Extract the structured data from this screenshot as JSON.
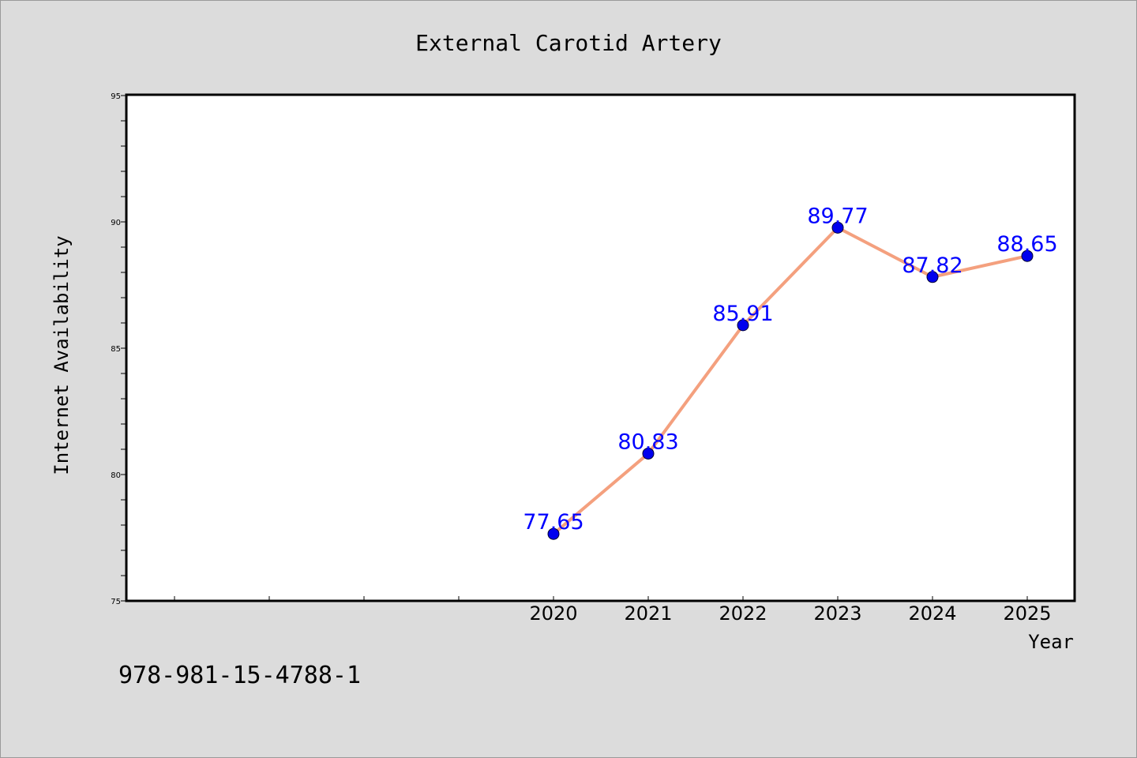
{
  "chart_data": {
    "type": "line",
    "title": "External Carotid Artery",
    "xlabel": "Year",
    "ylabel": "Internet Availability",
    "footnote": "978-981-15-4788-1",
    "categories": [
      "2020",
      "2021",
      "2022",
      "2023",
      "2024",
      "2025"
    ],
    "x": [
      2020,
      2021,
      2022,
      2023,
      2024,
      2025
    ],
    "xlim": [
      2015.5,
      2025.5
    ],
    "ylim": [
      75,
      95
    ],
    "yticks": [
      75,
      80,
      85,
      90,
      95
    ],
    "ytick_labels": [
      "75",
      "80",
      "85",
      "90",
      "95"
    ],
    "series": [
      {
        "values": [
          77.65,
          80.83,
          85.91,
          89.77,
          87.82,
          88.65
        ],
        "labels": [
          "77.65",
          "80.83",
          "85.91",
          "89.77",
          "87.82",
          "88.65"
        ]
      }
    ],
    "grid": false,
    "legend": "none",
    "colors": {
      "background": "#dcdcdc",
      "plot_background": "#ffffff",
      "line": "#f4a07e",
      "marker": "#0000ee",
      "data_label": "#0000ff",
      "text": "#000000"
    }
  }
}
